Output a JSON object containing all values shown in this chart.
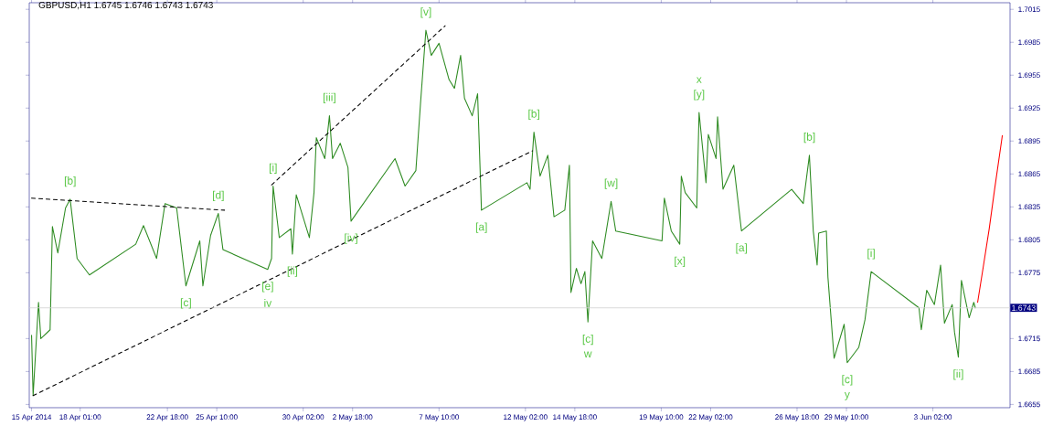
{
  "chart_data": {
    "type": "line",
    "title": "GBPUSD,H1 1.6745 1.6746 1.6743 1.6743",
    "xlim": [
      "2014-04-15T07:00",
      "2014-06-07T06:00"
    ],
    "ylim": [
      1.6652,
      1.7021
    ],
    "xticks": [
      {
        "value": "2014-04-15T10:00",
        "label": "15 Apr 2014"
      },
      {
        "value": "2014-04-18T01:00",
        "label": "18 Apr 01:00"
      },
      {
        "value": "2014-04-22T18:00",
        "label": "22 Apr 18:00"
      },
      {
        "value": "2014-04-25T10:00",
        "label": "25 Apr 10:00"
      },
      {
        "value": "2014-04-30T02:00",
        "label": "30 Apr 02:00"
      },
      {
        "value": "2014-05-02T18:00",
        "label": "2 May 18:00"
      },
      {
        "value": "2014-05-07T10:00",
        "label": "7 May 10:00"
      },
      {
        "value": "2014-05-12T02:00",
        "label": "12 May 02:00"
      },
      {
        "value": "2014-05-14T18:00",
        "label": "14 May 18:00"
      },
      {
        "value": "2014-05-19T10:00",
        "label": "19 May 10:00"
      },
      {
        "value": "2014-05-22T02:00",
        "label": "22 May 02:00"
      },
      {
        "value": "2014-05-26T18:00",
        "label": "26 May 18:00"
      },
      {
        "value": "2014-05-29T10:00",
        "label": "29 May 10:00"
      },
      {
        "value": "2014-06-03T02:00",
        "label": "3 Jun 02:00"
      }
    ],
    "yticks": [
      1.6655,
      1.6685,
      1.6715,
      1.6775,
      1.6805,
      1.6835,
      1.6865,
      1.6895,
      1.6925,
      1.6955,
      1.6985,
      1.7015
    ],
    "ref_lines": [
      {
        "axis": "y",
        "value": 1.6743,
        "label": "1.6743",
        "color": "#d0d0d0"
      }
    ],
    "series": [
      {
        "color": "#2e8b22",
        "x": [
          "2014-04-15T10:00",
          "2014-04-15T12:00",
          "2014-04-15T19:00",
          "2014-04-15T22:00",
          "2014-04-16T10:00",
          "2014-04-16T13:00",
          "2014-04-16T20:00",
          "2014-04-17T06:00",
          "2014-04-17T12:00",
          "2014-04-17T21:00",
          "2014-04-18T13:00",
          "2014-04-21T01:00",
          "2014-04-21T11:00",
          "2014-04-22T04:00",
          "2014-04-22T15:00",
          "2014-04-23T06:00",
          "2014-04-23T18:00",
          "2014-04-24T12:00",
          "2014-04-24T16:00",
          "2014-04-25T02:00",
          "2014-04-25T12:00",
          "2014-04-25T18:00",
          "2014-04-28T04:00",
          "2014-04-28T09:00",
          "2014-04-28T11:00",
          "2014-04-28T19:00",
          "2014-04-29T10:00",
          "2014-04-29T12:00",
          "2014-04-29T17:00",
          "2014-04-30T10:00",
          "2014-04-30T16:00",
          "2014-04-30T19:00",
          "2014-05-01T06:00",
          "2014-05-01T12:00",
          "2014-05-01T16:00",
          "2014-05-02T02:00",
          "2014-05-02T12:00",
          "2014-05-02T16:00",
          "2014-05-05T01:00",
          "2014-05-05T14:00",
          "2014-05-06T04:00",
          "2014-05-06T10:00",
          "2014-05-06T17:00",
          "2014-05-07T00:00",
          "2014-05-07T10:00",
          "2014-05-07T23:00",
          "2014-05-08T06:00",
          "2014-05-08T14:00",
          "2014-05-08T19:00",
          "2014-05-09T05:00",
          "2014-05-09T12:00",
          "2014-05-09T17:00",
          "2014-05-12T04:00",
          "2014-05-12T08:00",
          "2014-05-12T13:00",
          "2014-05-12T21:00",
          "2014-05-13T07:00",
          "2014-05-13T15:00",
          "2014-05-14T05:00",
          "2014-05-14T11:00",
          "2014-05-14T13:00",
          "2014-05-14T20:00",
          "2014-05-15T02:00",
          "2014-05-15T07:00",
          "2014-05-15T11:00",
          "2014-05-15T17:00",
          "2014-05-16T05:00",
          "2014-05-16T17:00",
          "2014-05-16T23:00",
          "2014-05-19T11:00",
          "2014-05-19T14:00",
          "2014-05-19T23:00",
          "2014-05-20T10:00",
          "2014-05-20T12:00",
          "2014-05-20T17:00",
          "2014-05-21T08:00",
          "2014-05-21T11:00",
          "2014-05-21T20:00",
          "2014-05-21T23:00",
          "2014-05-22T09:00",
          "2014-05-22T11:00",
          "2014-05-22T18:00",
          "2014-05-23T08:00",
          "2014-05-23T18:00",
          "2014-05-26T11:00",
          "2014-05-27T02:00",
          "2014-05-27T10:00",
          "2014-05-27T15:00",
          "2014-05-27T20:00",
          "2014-05-27T22:00",
          "2014-05-28T08:00",
          "2014-05-28T10:00",
          "2014-05-28T18:00",
          "2014-05-29T07:00",
          "2014-05-29T11:00",
          "2014-05-30T02:00",
          "2014-05-30T10:00",
          "2014-05-30T18:00",
          "2014-06-02T08:00",
          "2014-06-02T11:00",
          "2014-06-02T18:00",
          "2014-06-03T04:00",
          "2014-06-03T12:00",
          "2014-06-03T17:00",
          "2014-06-04T03:00",
          "2014-06-04T06:00",
          "2014-06-04T11:00",
          "2014-06-04T15:00",
          "2014-06-05T01:00",
          "2014-06-05T07:00",
          "2014-06-05T09:00"
        ],
        "values": [
          1.6718,
          1.6663,
          1.6748,
          1.6715,
          1.6723,
          1.6817,
          1.6793,
          1.6834,
          1.6842,
          1.6788,
          1.6773,
          1.6801,
          1.6818,
          1.6788,
          1.6838,
          1.6834,
          1.6763,
          1.6804,
          1.6763,
          1.6809,
          1.6829,
          1.6796,
          1.6778,
          1.6788,
          1.6854,
          1.6807,
          1.6815,
          1.6792,
          1.6846,
          1.6807,
          1.6848,
          1.6898,
          1.6879,
          1.6918,
          1.6879,
          1.6893,
          1.6871,
          1.6822,
          1.6879,
          1.6854,
          1.6868,
          1.6929,
          1.6996,
          1.6973,
          1.6984,
          1.6951,
          1.6943,
          1.6973,
          1.6934,
          1.6918,
          1.6938,
          1.6832,
          1.6857,
          1.6851,
          1.6903,
          1.6863,
          1.6882,
          1.6826,
          1.6832,
          1.6873,
          1.6757,
          1.6779,
          1.6765,
          1.6776,
          1.673,
          1.6804,
          1.6788,
          1.684,
          1.6813,
          1.6804,
          1.6843,
          1.6813,
          1.6801,
          1.6863,
          1.6848,
          1.6834,
          1.6921,
          1.6857,
          1.6901,
          1.6879,
          1.6917,
          1.6851,
          1.6873,
          1.6813,
          1.6851,
          1.6838,
          1.6882,
          1.6813,
          1.6782,
          1.6811,
          1.6813,
          1.6771,
          1.6697,
          1.6728,
          1.6693,
          1.6707,
          1.6732,
          1.6776,
          1.6743,
          1.6723,
          1.6759,
          1.6746,
          1.6782,
          1.6729,
          1.6746,
          1.6721,
          1.6698,
          1.6768,
          1.6734,
          1.6748,
          1.6743
        ]
      },
      {
        "color": "#000000",
        "line_style": "dashed",
        "x": [
          "2014-04-15T10:00",
          "2014-04-25T20:00"
        ],
        "values": [
          1.6843,
          1.6832
        ]
      },
      {
        "color": "#000000",
        "line_style": "dashed",
        "x": [
          "2014-04-15T12:00",
          "2014-05-12T11:00"
        ],
        "values": [
          1.6663,
          1.6886
        ]
      },
      {
        "color": "#000000",
        "line_style": "dashed",
        "x": [
          "2014-04-28T09:00",
          "2014-05-07T18:00"
        ],
        "values": [
          1.6855,
          1.7
        ]
      },
      {
        "color": "#ff0000",
        "x": [
          "2014-06-05T12:00",
          "2014-06-05T19:00",
          "2014-06-06T03:00",
          "2014-06-06T10:00",
          "2014-06-06T20:00"
        ],
        "values": [
          1.6748,
          1.6779,
          1.6815,
          1.6851,
          1.69
        ]
      }
    ],
    "annotations": [
      {
        "text": "[b]",
        "x": "2014-04-17T12:00",
        "y": 1.6842
      },
      {
        "text": "[c]",
        "x": "2014-04-23T18:00",
        "y": 1.6763
      },
      {
        "text": "[d]",
        "x": "2014-04-25T12:00",
        "y": 1.6829
      },
      {
        "text": "[e]",
        "x": "2014-04-28T04:00",
        "y": 1.6778
      },
      {
        "text": "iv",
        "x": "2014-04-28T04:00",
        "y": 1.6778
      },
      {
        "text": "[i]",
        "x": "2014-04-28T11:00",
        "y": 1.6854
      },
      {
        "text": "[ii]",
        "x": "2014-04-29T12:00",
        "y": 1.6792
      },
      {
        "text": "[iii]",
        "x": "2014-05-01T12:00",
        "y": 1.6918
      },
      {
        "text": "[iv]",
        "x": "2014-05-02T16:00",
        "y": 1.6822
      },
      {
        "text": "[v]",
        "x": "2014-05-06T17:00",
        "y": 1.6996
      },
      {
        "text": "[a]",
        "x": "2014-05-09T17:00",
        "y": 1.6832
      },
      {
        "text": "[b]",
        "x": "2014-05-12T13:00",
        "y": 1.6903
      },
      {
        "text": "[c]",
        "x": "2014-05-15T11:00",
        "y": 1.673
      },
      {
        "text": "w",
        "x": "2014-05-15T11:00",
        "y": 1.673
      },
      {
        "text": "[w]",
        "x": "2014-05-16T17:00",
        "y": 1.684
      },
      {
        "text": "[x]",
        "x": "2014-05-20T10:00",
        "y": 1.6801
      },
      {
        "text": "[y]",
        "x": "2014-05-21T11:00",
        "y": 1.6921
      },
      {
        "text": "x",
        "x": "2014-05-21T11:00",
        "y": 1.6921
      },
      {
        "text": "[a]",
        "x": "2014-05-23T18:00",
        "y": 1.6813
      },
      {
        "text": "[b]",
        "x": "2014-05-27T10:00",
        "y": 1.6882
      },
      {
        "text": "[c]",
        "x": "2014-05-29T11:00",
        "y": 1.6693
      },
      {
        "text": "y",
        "x": "2014-05-29T11:00",
        "y": 1.6693
      },
      {
        "text": "[i]",
        "x": "2014-05-30T18:00",
        "y": 1.6776
      },
      {
        "text": "[ii]",
        "x": "2014-06-04T11:00",
        "y": 1.6698
      }
    ]
  }
}
